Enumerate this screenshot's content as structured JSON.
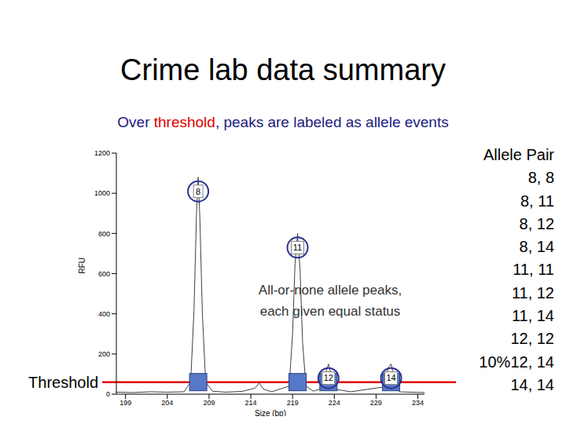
{
  "chart_data": {
    "type": "line",
    "title": "Crime lab data summary",
    "subtitle": "Over threshold, peaks are labeled as allele events",
    "subtitle_highlight": "threshold",
    "xlabel": "Size (bp)",
    "ylabel": "RFU",
    "x": [
      197.9,
      200,
      202,
      204,
      206,
      206.8,
      207.2,
      207.5,
      207.7,
      207.9,
      208.2,
      208.6,
      209.4,
      211,
      213,
      214.5,
      215,
      215.5,
      216.5,
      218.6,
      219.0,
      219.3,
      219.6,
      219.9,
      220.2,
      220.6,
      221.5,
      222.6,
      223.0,
      223.3,
      223.6,
      224.0,
      226,
      229.8,
      230.3,
      230.6,
      230.8,
      231.0,
      231.3,
      231.8,
      233,
      234.8
    ],
    "values": [
      10,
      8,
      12,
      10,
      12,
      60,
      420,
      900,
      1080,
      880,
      400,
      60,
      15,
      10,
      14,
      30,
      55,
      25,
      12,
      40,
      300,
      650,
      800,
      620,
      260,
      40,
      15,
      30,
      110,
      150,
      100,
      25,
      12,
      35,
      110,
      140,
      150,
      115,
      40,
      12,
      10,
      8
    ],
    "color": "#404040",
    "xlim": [
      197.9,
      234.8
    ],
    "xticks": [
      199,
      204,
      209,
      214,
      219,
      224,
      229,
      234
    ],
    "ylim": [
      0,
      1200
    ],
    "yticks": [
      0,
      200,
      400,
      600,
      800,
      1000,
      1200
    ],
    "threshold": 60,
    "threshold_label": "Threshold",
    "peaks": [
      {
        "label": "8",
        "x": 207.7,
        "y": 1080
      },
      {
        "label": "11",
        "x": 219.6,
        "y": 800
      },
      {
        "label": "12",
        "x": 223.3,
        "y": 150
      },
      {
        "label": "14",
        "x": 230.8,
        "y": 150
      }
    ],
    "annotation": [
      "All-or-none allele peaks,",
      "each given equal status"
    ],
    "allele_pairs_title": "Allele Pair",
    "allele_pairs": [
      {
        "pair": "8, 8"
      },
      {
        "pair": "8, 11"
      },
      {
        "pair": "8, 12"
      },
      {
        "pair": "8, 14"
      },
      {
        "pair": "11, 11"
      },
      {
        "pair": "11, 12"
      },
      {
        "pair": "11, 14"
      },
      {
        "pair": "12, 12"
      },
      {
        "pair": "12, 14",
        "note": "10%"
      },
      {
        "pair": "14, 14"
      }
    ]
  }
}
